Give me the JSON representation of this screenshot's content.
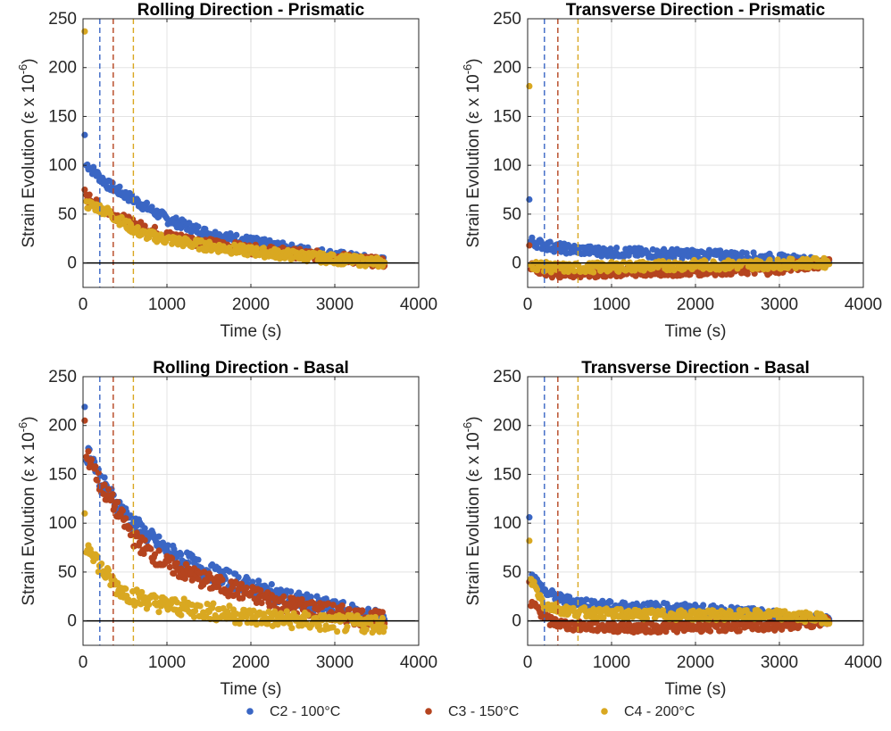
{
  "chart_data": {
    "panels": [
      {
        "type": "scatter",
        "title": "Rolling Direction - Prismatic",
        "xlabel": "Time (s)",
        "ylabel": "Strain Evolution (ε x 10",
        "ylabel_exp": "-6",
        "ylabel_close": ")",
        "xlim": [
          0,
          4000
        ],
        "ylim": [
          -25,
          250
        ],
        "xticks": [
          0,
          1000,
          2000,
          3000,
          4000
        ],
        "yticks": [
          0,
          50,
          100,
          150,
          200,
          250
        ],
        "grid": true,
        "vlines": [
          200,
          360,
          600
        ],
        "series": [
          {
            "name": "C2 - 100°C",
            "color": "#3a66c4",
            "points": [
              [
                20,
                131
              ],
              [
                60,
                100
              ],
              [
                150,
                92
              ],
              [
                300,
                80
              ],
              [
                500,
                70
              ],
              [
                700,
                60
              ],
              [
                1000,
                45
              ],
              [
                1500,
                30
              ],
              [
                2000,
                22
              ],
              [
                2500,
                14
              ],
              [
                3000,
                8
              ],
              [
                3300,
                4
              ],
              [
                3600,
                1
              ]
            ]
          },
          {
            "name": "C3 - 150°C",
            "color": "#b5441f",
            "points": [
              [
                20,
                75
              ],
              [
                80,
                66
              ],
              [
                200,
                57
              ],
              [
                400,
                48
              ],
              [
                600,
                40
              ],
              [
                800,
                34
              ],
              [
                1000,
                28
              ],
              [
                1500,
                20
              ],
              [
                2000,
                14
              ],
              [
                2500,
                10
              ],
              [
                3000,
                6
              ],
              [
                3300,
                3
              ],
              [
                3600,
                0
              ]
            ]
          },
          {
            "name": "C4 - 200°C",
            "color": "#d9a821",
            "points": [
              [
                20,
                237
              ],
              [
                40,
                60
              ],
              [
                150,
                58
              ],
              [
                300,
                52
              ],
              [
                500,
                40
              ],
              [
                700,
                30
              ],
              [
                1000,
                24
              ],
              [
                1500,
                17
              ],
              [
                2000,
                12
              ],
              [
                2500,
                8
              ],
              [
                3000,
                4
              ],
              [
                3300,
                2
              ],
              [
                3600,
                0
              ]
            ]
          }
        ]
      },
      {
        "type": "scatter",
        "title": "Transverse Direction - Prismatic",
        "xlabel": "Time (s)",
        "ylabel": "Strain Evolution (ε x 10",
        "ylabel_exp": "-6",
        "ylabel_close": ")",
        "xlim": [
          0,
          4000
        ],
        "ylim": [
          -25,
          250
        ],
        "xticks": [
          0,
          1000,
          2000,
          3000,
          4000
        ],
        "yticks": [
          0,
          50,
          100,
          150,
          200,
          250
        ],
        "grid": true,
        "vlines": [
          200,
          360,
          600
        ],
        "series": [
          {
            "name": "C2 - 100°C",
            "color": "#3a66c4",
            "points": [
              [
                20,
                65
              ],
              [
                60,
                22
              ],
              [
                200,
                18
              ],
              [
                500,
                14
              ],
              [
                1000,
                11
              ],
              [
                1500,
                10
              ],
              [
                2000,
                9
              ],
              [
                2500,
                7
              ],
              [
                3000,
                4
              ],
              [
                3300,
                2
              ],
              [
                3600,
                0
              ]
            ]
          },
          {
            "name": "C3 - 150°C",
            "color": "#b5441f",
            "points": [
              [
                20,
                18
              ],
              [
                100,
                -5
              ],
              [
                300,
                -10
              ],
              [
                600,
                -11
              ],
              [
                1000,
                -10
              ],
              [
                1500,
                -9
              ],
              [
                2000,
                -8
              ],
              [
                2500,
                -7
              ],
              [
                2900,
                -7
              ],
              [
                3300,
                -2
              ],
              [
                3600,
                0
              ]
            ]
          },
          {
            "name": "C4 - 200°C",
            "color": "#d9a821",
            "points": [
              [
                20,
                181
              ],
              [
                60,
                -2
              ],
              [
                300,
                -5
              ],
              [
                600,
                -5
              ],
              [
                1000,
                -4
              ],
              [
                1500,
                -3
              ],
              [
                2000,
                -2
              ],
              [
                2500,
                -2
              ],
              [
                3000,
                -1
              ],
              [
                3300,
                0
              ],
              [
                3600,
                0
              ]
            ]
          }
        ]
      },
      {
        "type": "scatter",
        "title": "Rolling Direction - Basal",
        "xlabel": "Time (s)",
        "ylabel": "Strain Evolution (ε x 10",
        "ylabel_exp": "-6",
        "ylabel_close": ")",
        "xlim": [
          0,
          4000
        ],
        "ylim": [
          -25,
          250
        ],
        "xticks": [
          0,
          1000,
          2000,
          3000,
          4000
        ],
        "yticks": [
          0,
          50,
          100,
          150,
          200,
          250
        ],
        "grid": true,
        "vlines": [
          200,
          360,
          600
        ],
        "series": [
          {
            "name": "C2 - 100°C",
            "color": "#3a66c4",
            "points": [
              [
                20,
                219
              ],
              [
                100,
                170
              ],
              [
                200,
                145
              ],
              [
                400,
                120
              ],
              [
                600,
                100
              ],
              [
                800,
                85
              ],
              [
                1000,
                72
              ],
              [
                1500,
                50
              ],
              [
                2000,
                35
              ],
              [
                2500,
                22
              ],
              [
                3000,
                12
              ],
              [
                3400,
                5
              ],
              [
                3600,
                2
              ]
            ]
          },
          {
            "name": "C3 - 150°C",
            "color": "#b5441f",
            "points": [
              [
                20,
                205
              ],
              [
                100,
                165
              ],
              [
                200,
                140
              ],
              [
                400,
                115
              ],
              [
                600,
                85
              ],
              [
                800,
                70
              ],
              [
                1000,
                58
              ],
              [
                1500,
                40
              ],
              [
                2000,
                27
              ],
              [
                2500,
                16
              ],
              [
                3000,
                8
              ],
              [
                3400,
                3
              ],
              [
                3600,
                0
              ]
            ]
          },
          {
            "name": "C4 - 200°C",
            "color": "#d9a821",
            "points": [
              [
                20,
                110
              ],
              [
                100,
                75
              ],
              [
                200,
                55
              ],
              [
                400,
                35
              ],
              [
                600,
                25
              ],
              [
                800,
                20
              ],
              [
                1000,
                16
              ],
              [
                1500,
                10
              ],
              [
                2000,
                4
              ],
              [
                2500,
                1
              ],
              [
                3000,
                -3
              ],
              [
                3400,
                -3
              ],
              [
                3600,
                -3
              ]
            ]
          }
        ]
      },
      {
        "type": "scatter",
        "title": "Transverse Direction - Basal",
        "xlabel": "Time (s)",
        "ylabel": "Strain Evolution (ε x 10",
        "ylabel_exp": "-6",
        "ylabel_close": ")",
        "xlim": [
          0,
          4000
        ],
        "ylim": [
          -25,
          250
        ],
        "xticks": [
          0,
          1000,
          2000,
          3000,
          4000
        ],
        "yticks": [
          0,
          50,
          100,
          150,
          200,
          250
        ],
        "grid": true,
        "vlines": [
          200,
          360,
          600
        ],
        "series": [
          {
            "name": "C2 - 100°C",
            "color": "#3a66c4",
            "points": [
              [
                20,
                106
              ],
              [
                60,
                45
              ],
              [
                200,
                30
              ],
              [
                400,
                22
              ],
              [
                700,
                18
              ],
              [
                1000,
                15
              ],
              [
                1500,
                14
              ],
              [
                2000,
                12
              ],
              [
                2500,
                9
              ],
              [
                3000,
                6
              ],
              [
                3300,
                3
              ],
              [
                3600,
                1
              ]
            ]
          },
          {
            "name": "C3 - 150°C",
            "color": "#b5441f",
            "points": [
              [
                20,
                40
              ],
              [
                100,
                15
              ],
              [
                250,
                0
              ],
              [
                500,
                -5
              ],
              [
                800,
                -6
              ],
              [
                1200,
                -7
              ],
              [
                1600,
                -7
              ],
              [
                2000,
                -6
              ],
              [
                2500,
                -6
              ],
              [
                3000,
                -5
              ],
              [
                3300,
                -2
              ],
              [
                3600,
                0
              ]
            ]
          },
          {
            "name": "C4 - 200°C",
            "color": "#d9a821",
            "points": [
              [
                20,
                82
              ],
              [
                60,
                40
              ],
              [
                200,
                16
              ],
              [
                500,
                10
              ],
              [
                800,
                8
              ],
              [
                1200,
                7
              ],
              [
                1600,
                6
              ],
              [
                2000,
                6
              ],
              [
                2500,
                6
              ],
              [
                3000,
                6
              ],
              [
                3300,
                4
              ],
              [
                3600,
                2
              ]
            ]
          }
        ]
      }
    ],
    "legend": {
      "position": "bottom",
      "entries": [
        {
          "label": "C2 - 100°C",
          "color": "#3a66c4"
        },
        {
          "label": "C3 - 150°C",
          "color": "#b5441f"
        },
        {
          "label": "C4 - 200°C",
          "color": "#d9a821"
        }
      ]
    }
  }
}
